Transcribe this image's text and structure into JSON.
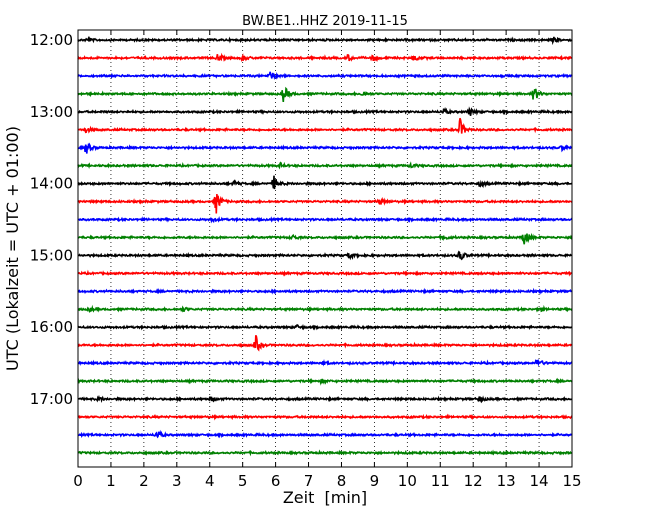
{
  "chart_data": {
    "type": "line",
    "title": "BW.BE1..HHZ 2019-11-15",
    "xlabel": "Zeit  [min]",
    "ylabel": "UTC (Lokalzeit = UTC + 01:00)",
    "xlim": [
      0,
      15
    ],
    "xticks": [
      "0",
      "1",
      "2",
      "3",
      "4",
      "5",
      "6",
      "7",
      "8",
      "9",
      "10",
      "11",
      "12",
      "13",
      "14",
      "15"
    ],
    "yticks": [
      {
        "label": "12:00",
        "trace_index": 0
      },
      {
        "label": "13:00",
        "trace_index": 4
      },
      {
        "label": "14:00",
        "trace_index": 8
      },
      {
        "label": "15:00",
        "trace_index": 12
      },
      {
        "label": "16:00",
        "trace_index": 16
      },
      {
        "label": "17:00",
        "trace_index": 20
      }
    ],
    "grid": "vertical dotted",
    "trace_colors": [
      "#000000",
      "#ff0000",
      "#0000ff",
      "#008000"
    ],
    "traces": [
      {
        "start": "12:00",
        "events": [
          {
            "t": 0.3,
            "amp": 0.2
          },
          {
            "t": 14.45,
            "amp": 0.3
          }
        ]
      },
      {
        "start": "12:15",
        "events": [
          {
            "t": 4.25,
            "amp": 0.45
          },
          {
            "t": 5.0,
            "amp": 0.3
          },
          {
            "t": 8.2,
            "amp": 0.35
          },
          {
            "t": 8.95,
            "amp": 0.3
          },
          {
            "t": 10.2,
            "amp": 0.35
          }
        ]
      },
      {
        "start": "12:30",
        "events": [
          {
            "t": 5.85,
            "amp": 0.5
          }
        ]
      },
      {
        "start": "12:45",
        "events": [
          {
            "t": 6.25,
            "amp": 1.0
          },
          {
            "t": 8.65,
            "amp": 0.3
          },
          {
            "t": 13.85,
            "amp": 0.9
          }
        ]
      },
      {
        "start": "13:00",
        "events": [
          {
            "t": 11.1,
            "amp": 0.3
          },
          {
            "t": 11.9,
            "amp": 0.45
          }
        ]
      },
      {
        "start": "13:15",
        "events": [
          {
            "t": 0.25,
            "amp": 0.3
          },
          {
            "t": 11.6,
            "amp": 1.2
          }
        ]
      },
      {
        "start": "13:30",
        "events": [
          {
            "t": 0.25,
            "amp": 0.7
          },
          {
            "t": 14.7,
            "amp": 0.25
          }
        ]
      },
      {
        "start": "13:45",
        "events": [
          {
            "t": 6.15,
            "amp": 0.25
          },
          {
            "t": 10.1,
            "amp": 0.25
          }
        ]
      },
      {
        "start": "14:00",
        "events": [
          {
            "t": 4.75,
            "amp": 0.3
          },
          {
            "t": 5.95,
            "amp": 0.8
          },
          {
            "t": 12.2,
            "amp": 0.3
          }
        ]
      },
      {
        "start": "14:15",
        "events": [
          {
            "t": 4.2,
            "amp": 1.3
          },
          {
            "t": 9.15,
            "amp": 0.4
          }
        ]
      },
      {
        "start": "14:30",
        "events": [
          {
            "t": 4.1,
            "amp": 0.2
          }
        ]
      },
      {
        "start": "14:45",
        "events": [
          {
            "t": 6.5,
            "amp": 0.3
          },
          {
            "t": 11.1,
            "amp": 0.3
          },
          {
            "t": 13.55,
            "amp": 1.0
          }
        ]
      },
      {
        "start": "15:00",
        "events": [
          {
            "t": 8.25,
            "amp": 0.35
          },
          {
            "t": 11.6,
            "amp": 0.65
          }
        ]
      },
      {
        "start": "15:15",
        "events": []
      },
      {
        "start": "15:30",
        "events": []
      },
      {
        "start": "15:45",
        "events": [
          {
            "t": 0.35,
            "amp": 0.2
          },
          {
            "t": 3.2,
            "amp": 0.25
          },
          {
            "t": 14.0,
            "amp": 0.25
          }
        ]
      },
      {
        "start": "16:00",
        "events": [
          {
            "t": 6.65,
            "amp": 0.2
          }
        ]
      },
      {
        "start": "16:15",
        "events": [
          {
            "t": 5.4,
            "amp": 1.0
          }
        ]
      },
      {
        "start": "16:30",
        "events": [
          {
            "t": 7.4,
            "amp": 0.2
          },
          {
            "t": 13.95,
            "amp": 0.55
          }
        ]
      },
      {
        "start": "16:45",
        "events": [
          {
            "t": 7.4,
            "amp": 0.2
          }
        ]
      },
      {
        "start": "17:00",
        "events": [
          {
            "t": 0.65,
            "amp": 0.2
          },
          {
            "t": 4.05,
            "amp": 0.3
          },
          {
            "t": 12.2,
            "amp": 0.3
          }
        ]
      },
      {
        "start": "17:15",
        "events": []
      },
      {
        "start": "17:30",
        "events": [
          {
            "t": 2.4,
            "amp": 0.5
          }
        ]
      },
      {
        "start": "17:45",
        "events": []
      }
    ]
  }
}
